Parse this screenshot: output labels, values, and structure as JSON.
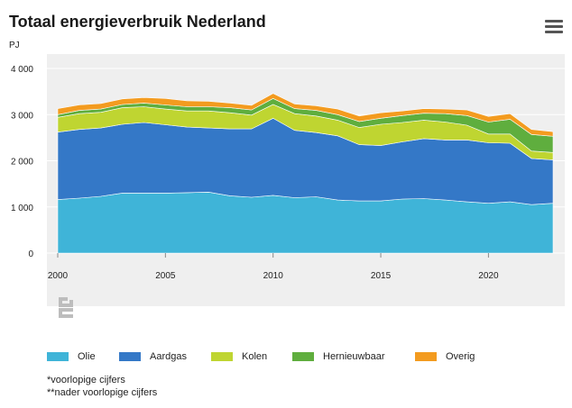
{
  "header": {
    "title": "Totaal energieverbruik Nederland",
    "unit": "PJ"
  },
  "notes": {
    "note1": "*voorlopige cijfers",
    "note2": "**nader voorlopige cijfers"
  },
  "logo": {
    "icon": "cbs-logo-icon"
  },
  "menu": {
    "icon": "hamburger-menu-icon"
  },
  "chart_data": {
    "type": "area",
    "stacked": true,
    "title": "Totaal energieverbruik Nederland",
    "ylabel": "PJ",
    "ylim": [
      0,
      4000
    ],
    "yticks": [
      0,
      1000,
      2000,
      3000,
      4000
    ],
    "ytick_labels": [
      "0",
      "1 000",
      "2 000",
      "3 000",
      "4 000"
    ],
    "xlim": [
      2000,
      2023
    ],
    "xticks": [
      2000,
      2005,
      2010,
      2015,
      2020
    ],
    "grid": true,
    "legend_position": "bottom",
    "x": [
      2000,
      2001,
      2002,
      2003,
      2004,
      2005,
      2006,
      2007,
      2008,
      2009,
      2010,
      2011,
      2012,
      2013,
      2014,
      2015,
      2016,
      2017,
      2018,
      2019,
      2020,
      2021,
      2022,
      2023
    ],
    "series": [
      {
        "name": "Olie",
        "color": "#3fb4d8",
        "values": [
          1160,
          1190,
          1230,
          1300,
          1300,
          1300,
          1310,
          1320,
          1240,
          1210,
          1250,
          1200,
          1220,
          1150,
          1130,
          1130,
          1170,
          1180,
          1150,
          1110,
          1080,
          1110,
          1050,
          1080
        ]
      },
      {
        "name": "Aardgas",
        "color": "#3478c7",
        "values": [
          1460,
          1490,
          1480,
          1490,
          1530,
          1480,
          1420,
          1390,
          1450,
          1480,
          1670,
          1460,
          1390,
          1390,
          1220,
          1200,
          1240,
          1300,
          1300,
          1340,
          1310,
          1270,
          1000,
          940
        ]
      },
      {
        "name": "Kolen",
        "color": "#bfd531",
        "values": [
          320,
          340,
          340,
          360,
          340,
          340,
          350,
          370,
          350,
          300,
          300,
          360,
          360,
          340,
          370,
          460,
          420,
          400,
          390,
          320,
          190,
          200,
          160,
          160
        ]
      },
      {
        "name": "Hernieuwbaar",
        "color": "#5fae3e",
        "values": [
          60,
          70,
          70,
          70,
          80,
          90,
          90,
          90,
          110,
          110,
          130,
          110,
          120,
          120,
          130,
          130,
          150,
          150,
          180,
          210,
          260,
          320,
          360,
          350
        ]
      },
      {
        "name": "Overig",
        "color": "#f39b1f",
        "values": [
          130,
          120,
          120,
          120,
          120,
          140,
          130,
          120,
          100,
          100,
          110,
          100,
          100,
          120,
          120,
          120,
          100,
          100,
          100,
          120,
          120,
          120,
          110,
          100
        ]
      }
    ]
  }
}
